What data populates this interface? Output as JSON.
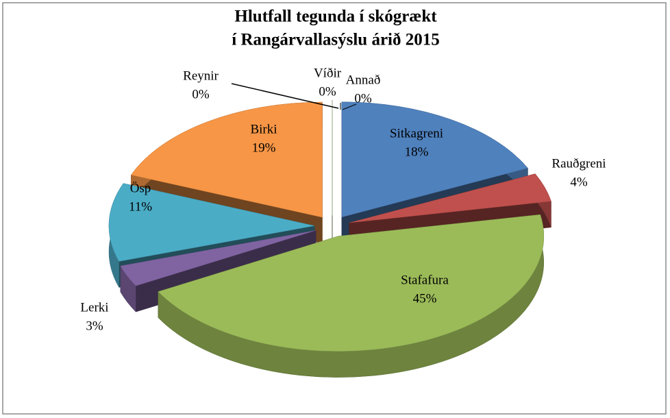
{
  "chart_data": {
    "type": "pie3d",
    "title": [
      "Hlutfall  tegunda í skógrækt",
      "í Rangárvallasýslu árið 2015"
    ],
    "categories": [
      "Sitkagreni",
      "Rauðgreni",
      "Stafafura",
      "Lerki",
      "Ösp",
      "Birki",
      "Reynir",
      "Víðir",
      "Annað"
    ],
    "values": [
      18,
      4,
      45,
      3,
      11,
      19,
      0,
      0,
      0
    ],
    "value_labels": [
      "18%",
      "4%",
      "45%",
      "3%",
      "11%",
      "19%",
      "0%",
      "0%",
      "0%"
    ],
    "colors": [
      "#4f81bd",
      "#c0504d",
      "#9bbb59",
      "#8064a2",
      "#4bacc6",
      "#f79646",
      "#2c4d75",
      "#77933c",
      "#c3d69b"
    ]
  }
}
